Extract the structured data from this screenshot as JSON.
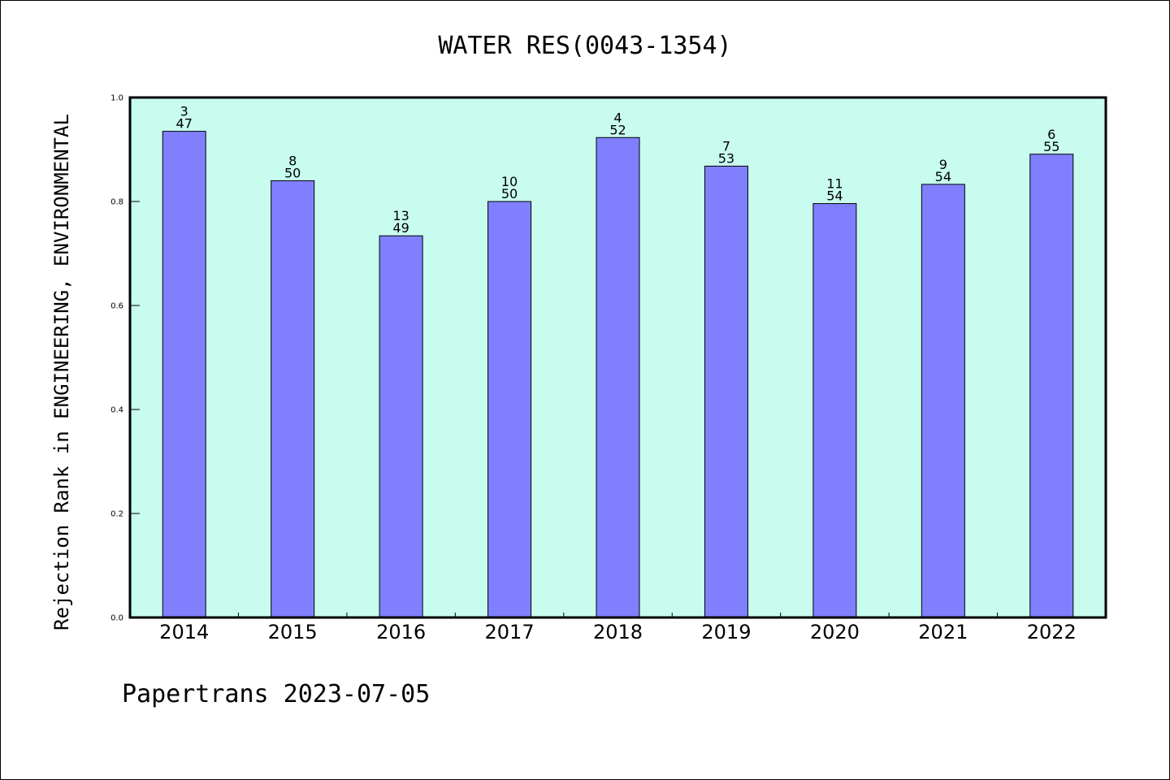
{
  "chart_data": {
    "type": "bar",
    "title": "WATER RES(0043-1354)",
    "ylabel": "Rejection Rank in ENGINEERING, ENVIRONMENTAL",
    "xlabel": "",
    "ylim": [
      0,
      1.0
    ],
    "yticks": [
      "0.0",
      "0.2",
      "0.4",
      "0.6",
      "0.8",
      "1.0"
    ],
    "categories": [
      "2014",
      "2015",
      "2016",
      "2017",
      "2018",
      "2019",
      "2020",
      "2021",
      "2022"
    ],
    "values": [
      0.935,
      0.84,
      0.734,
      0.8,
      0.923,
      0.868,
      0.796,
      0.833,
      0.891
    ],
    "rank": [
      "3",
      "8",
      "13",
      "10",
      "4",
      "7",
      "11",
      "9",
      "6"
    ],
    "total": [
      "47",
      "50",
      "49",
      "50",
      "52",
      "53",
      "54",
      "54",
      "55"
    ],
    "colors": {
      "bar": "#8080ff",
      "plot_bg": "#c8fcef",
      "bar_edge": "#000000"
    },
    "grid": false
  },
  "footer": "Papertrans 2023-07-05"
}
